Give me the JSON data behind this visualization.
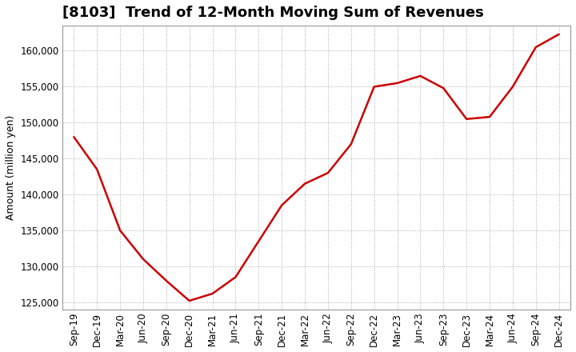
{
  "title": "[8103]  Trend of 12-Month Moving Sum of Revenues",
  "ylabel": "Amount (million yen)",
  "line_color": "#cc0000",
  "background_color": "#ffffff",
  "plot_bg_color": "#ffffff",
  "grid_color": "#aaaaaa",
  "ylim": [
    124000,
    163500
  ],
  "yticks": [
    125000,
    130000,
    135000,
    140000,
    145000,
    150000,
    155000,
    160000
  ],
  "x_labels": [
    "Sep-19",
    "Dec-19",
    "Mar-20",
    "Jun-20",
    "Sep-20",
    "Dec-20",
    "Mar-21",
    "Jun-21",
    "Sep-21",
    "Dec-21",
    "Mar-22",
    "Jun-22",
    "Sep-22",
    "Dec-22",
    "Mar-23",
    "Jun-23",
    "Sep-23",
    "Dec-23",
    "Mar-24",
    "Jun-24",
    "Sep-24",
    "Dec-24"
  ],
  "values": [
    148000,
    143500,
    135000,
    131000,
    128000,
    125200,
    126200,
    128500,
    133500,
    138500,
    141500,
    143000,
    147000,
    155000,
    155500,
    156500,
    154800,
    150500,
    150800,
    155000,
    160500,
    162300
  ],
  "title_fontsize": 13,
  "axis_label_fontsize": 9,
  "tick_fontsize": 8.5,
  "line_width": 1.8
}
